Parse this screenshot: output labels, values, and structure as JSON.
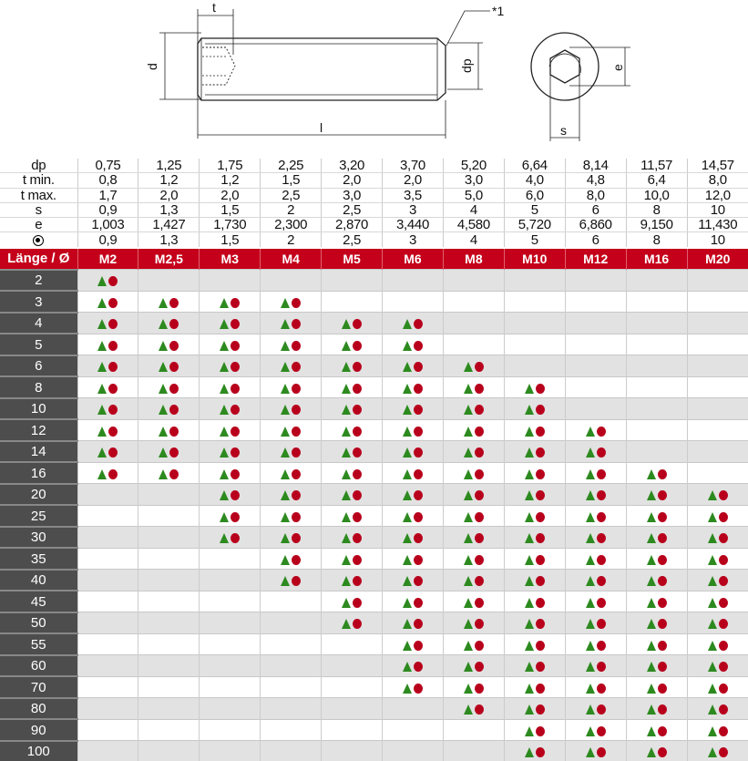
{
  "drawing": {
    "labels": {
      "t": "t",
      "d": "d",
      "l": "l",
      "dp": "dp",
      "note": "*1",
      "e": "e",
      "s": "s"
    }
  },
  "colors": {
    "header_red": "#c4001a",
    "triangle_green": "#2d8a1f",
    "circle_red": "#b8001c",
    "length_column": "#4d4d4d"
  },
  "sizes": [
    "M2",
    "M2,5",
    "M3",
    "M4",
    "M5",
    "M6",
    "M8",
    "M10",
    "M12",
    "M16",
    "M20"
  ],
  "specs": [
    {
      "label": "dp",
      "values": [
        "0,75",
        "1,25",
        "1,75",
        "2,25",
        "3,20",
        "3,70",
        "5,20",
        "6,64",
        "8,14",
        "11,57",
        "14,57"
      ]
    },
    {
      "label": "t min.",
      "values": [
        "0,8",
        "1,2",
        "1,2",
        "1,5",
        "2,0",
        "2,0",
        "3,0",
        "4,0",
        "4,8",
        "6,4",
        "8,0"
      ]
    },
    {
      "label": "t max.",
      "values": [
        "1,7",
        "2,0",
        "2,0",
        "2,5",
        "3,0",
        "3,5",
        "5,0",
        "6,0",
        "8,0",
        "10,0",
        "12,0"
      ]
    },
    {
      "label": "s",
      "values": [
        "0,9",
        "1,3",
        "1,5",
        "2",
        "2,5",
        "3",
        "4",
        "5",
        "6",
        "8",
        "10"
      ]
    },
    {
      "label": "e",
      "values": [
        "1,003",
        "1,427",
        "1,730",
        "2,300",
        "2,870",
        "3,440",
        "4,580",
        "5,720",
        "6,860",
        "9,150",
        "11,430"
      ]
    },
    {
      "label": "",
      "icon": "socket-symbol-icon",
      "values": [
        "0,9",
        "1,3",
        "1,5",
        "2",
        "2,5",
        "3",
        "4",
        "5",
        "6",
        "8",
        "10"
      ]
    }
  ],
  "header_label": "Länge / Ø",
  "availability_icons": [
    "green-triangle-icon",
    "red-circle-icon"
  ],
  "lengths": [
    {
      "length": "2",
      "available": [
        1,
        0,
        0,
        0,
        0,
        0,
        0,
        0,
        0,
        0,
        0
      ]
    },
    {
      "length": "3",
      "available": [
        1,
        1,
        1,
        1,
        0,
        0,
        0,
        0,
        0,
        0,
        0
      ]
    },
    {
      "length": "4",
      "available": [
        1,
        1,
        1,
        1,
        1,
        1,
        0,
        0,
        0,
        0,
        0
      ]
    },
    {
      "length": "5",
      "available": [
        1,
        1,
        1,
        1,
        1,
        1,
        0,
        0,
        0,
        0,
        0
      ]
    },
    {
      "length": "6",
      "available": [
        1,
        1,
        1,
        1,
        1,
        1,
        1,
        0,
        0,
        0,
        0
      ]
    },
    {
      "length": "8",
      "available": [
        1,
        1,
        1,
        1,
        1,
        1,
        1,
        1,
        0,
        0,
        0
      ]
    },
    {
      "length": "10",
      "available": [
        1,
        1,
        1,
        1,
        1,
        1,
        1,
        1,
        0,
        0,
        0
      ]
    },
    {
      "length": "12",
      "available": [
        1,
        1,
        1,
        1,
        1,
        1,
        1,
        1,
        1,
        0,
        0
      ]
    },
    {
      "length": "14",
      "available": [
        1,
        1,
        1,
        1,
        1,
        1,
        1,
        1,
        1,
        0,
        0
      ]
    },
    {
      "length": "16",
      "available": [
        1,
        1,
        1,
        1,
        1,
        1,
        1,
        1,
        1,
        1,
        0
      ]
    },
    {
      "length": "20",
      "available": [
        0,
        0,
        1,
        1,
        1,
        1,
        1,
        1,
        1,
        1,
        1
      ]
    },
    {
      "length": "25",
      "available": [
        0,
        0,
        1,
        1,
        1,
        1,
        1,
        1,
        1,
        1,
        1
      ]
    },
    {
      "length": "30",
      "available": [
        0,
        0,
        1,
        1,
        1,
        1,
        1,
        1,
        1,
        1,
        1
      ]
    },
    {
      "length": "35",
      "available": [
        0,
        0,
        0,
        1,
        1,
        1,
        1,
        1,
        1,
        1,
        1
      ]
    },
    {
      "length": "40",
      "available": [
        0,
        0,
        0,
        1,
        1,
        1,
        1,
        1,
        1,
        1,
        1
      ]
    },
    {
      "length": "45",
      "available": [
        0,
        0,
        0,
        0,
        1,
        1,
        1,
        1,
        1,
        1,
        1
      ]
    },
    {
      "length": "50",
      "available": [
        0,
        0,
        0,
        0,
        1,
        1,
        1,
        1,
        1,
        1,
        1
      ]
    },
    {
      "length": "55",
      "available": [
        0,
        0,
        0,
        0,
        0,
        1,
        1,
        1,
        1,
        1,
        1
      ]
    },
    {
      "length": "60",
      "available": [
        0,
        0,
        0,
        0,
        0,
        1,
        1,
        1,
        1,
        1,
        1
      ]
    },
    {
      "length": "70",
      "available": [
        0,
        0,
        0,
        0,
        0,
        1,
        1,
        1,
        1,
        1,
        1
      ]
    },
    {
      "length": "80",
      "available": [
        0,
        0,
        0,
        0,
        0,
        0,
        1,
        1,
        1,
        1,
        1
      ]
    },
    {
      "length": "90",
      "available": [
        0,
        0,
        0,
        0,
        0,
        0,
        0,
        1,
        1,
        1,
        1
      ]
    },
    {
      "length": "100",
      "available": [
        0,
        0,
        0,
        0,
        0,
        0,
        0,
        1,
        1,
        1,
        1
      ]
    }
  ]
}
